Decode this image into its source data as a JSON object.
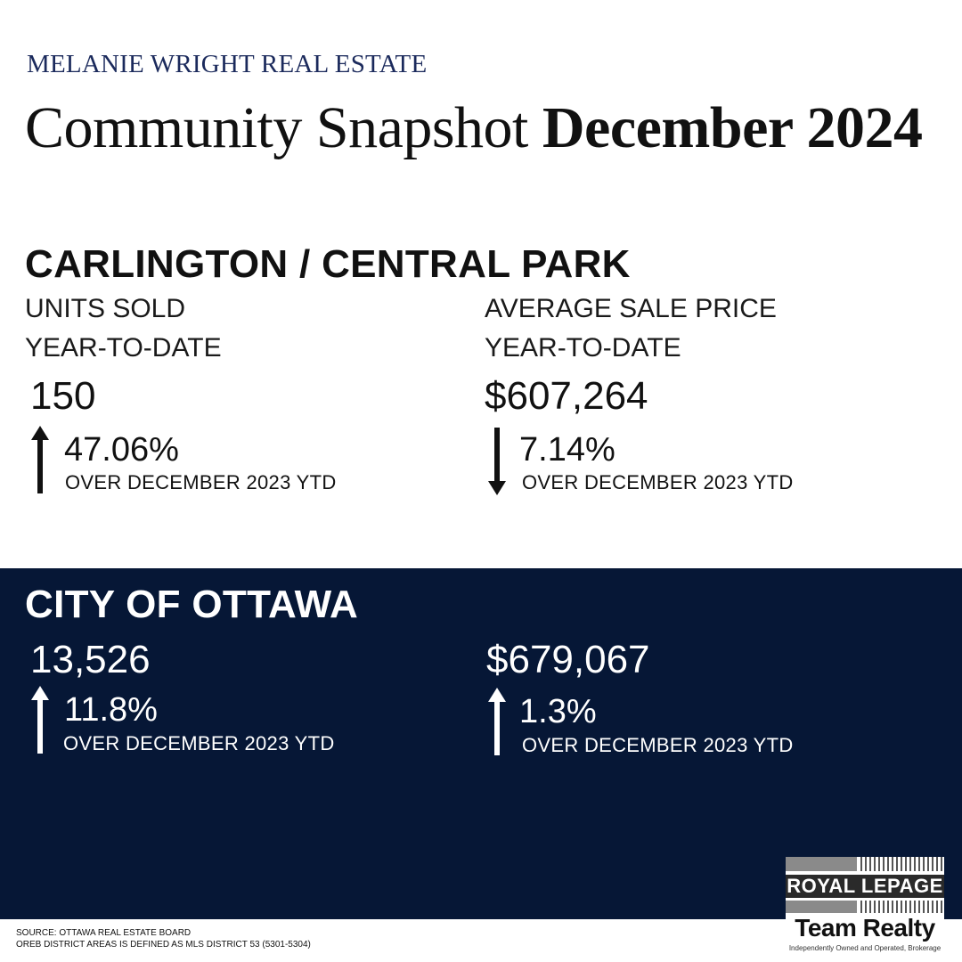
{
  "header": {
    "brand": "MELANIE WRIGHT REAL ESTATE",
    "title_regular": "Community Snapshot ",
    "title_bold": "December 2024"
  },
  "community": {
    "name": "CARLINGTON / CENTRAL PARK",
    "units": {
      "label": "UNITS SOLD",
      "period": "YEAR-TO-DATE",
      "value": "150",
      "change": "47.06%",
      "direction": "up",
      "comparison": "OVER DECEMBER 2023 YTD"
    },
    "price": {
      "label": "AVERAGE SALE PRICE",
      "period": "YEAR-TO-DATE",
      "value": "$607,264",
      "change": "7.14%",
      "direction": "down",
      "comparison": "OVER DECEMBER 2023 YTD"
    }
  },
  "city": {
    "name": "CITY OF OTTAWA",
    "units": {
      "value": "13,526",
      "change": "11.8%",
      "direction": "up",
      "comparison": "OVER DECEMBER 2023 YTD"
    },
    "price": {
      "value": "$679,067",
      "change": "1.3%",
      "direction": "up",
      "comparison": "OVER DECEMBER 2023 YTD"
    }
  },
  "footer": {
    "source_line1": "SOURCE: OTTAWA REAL ESTATE BOARD",
    "source_line2": "OREB DISTRICT AREAS IS DEFINED AS MLS DISTRICT 53 (5301-5304)"
  },
  "logo": {
    "line1": "ROYAL LEPAGE",
    "line2": "Team Realty",
    "tagline": "Independently Owned and Operated, Brokerage"
  },
  "colors": {
    "navy_band": "#061736",
    "brand_text": "#1b2a5c"
  }
}
